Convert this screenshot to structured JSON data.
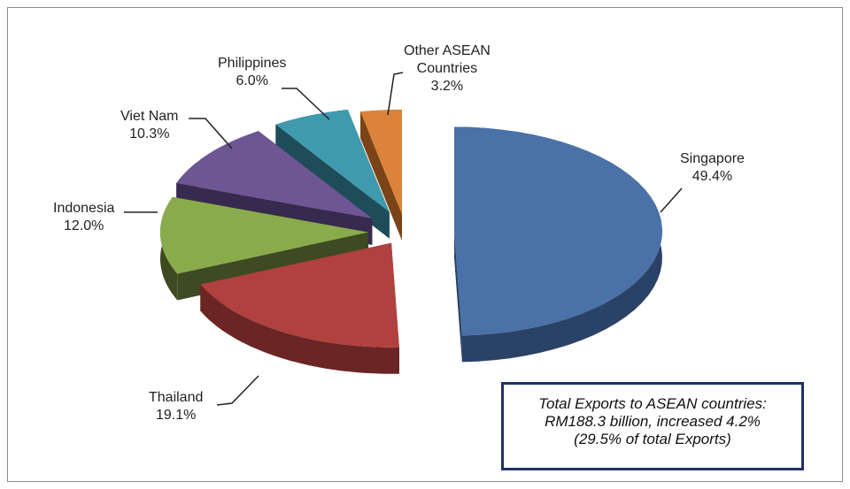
{
  "chart_data": {
    "type": "pie",
    "style": "3d-exploded",
    "title": "",
    "slices": [
      {
        "label": "Singapore",
        "value": 49.4,
        "value_label": "49.4%",
        "color": "#4a72a8",
        "side": "#2b4267"
      },
      {
        "label": "Thailand",
        "value": 19.1,
        "value_label": "19.1%",
        "color": "#b0413f",
        "side": "#6a2524"
      },
      {
        "label": "Indonesia",
        "value": 12.0,
        "value_label": "12.0%",
        "color": "#8aab4b",
        "side": "#3d4a22"
      },
      {
        "label": "Viet Nam",
        "value": 10.3,
        "value_label": "10.3%",
        "color": "#6e5594",
        "side": "#372a4f"
      },
      {
        "label": "Philippines",
        "value": 6.0,
        "value_label": "6.0%",
        "color": "#3f9aae",
        "side": "#1e4c58"
      },
      {
        "label": "Other ASEAN Countries",
        "label_lines": [
          "Other ASEAN",
          "Countries"
        ],
        "value": 3.2,
        "value_label": "3.2%",
        "color": "#db833b",
        "side": "#7a4418"
      }
    ],
    "annotation": [
      "Total Exports to ASEAN countries:",
      "RM188.3 billion, increased 4.2%",
      "(29.5% of total Exports)"
    ]
  }
}
